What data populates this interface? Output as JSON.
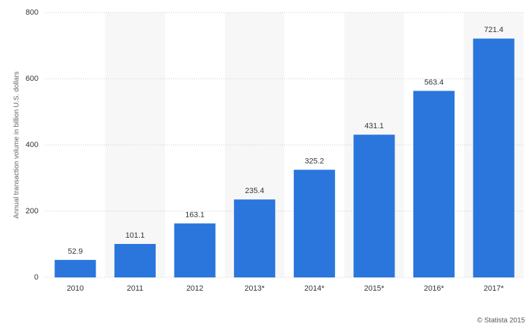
{
  "chart_data": {
    "type": "bar",
    "y_label": "Annual transaction volume in billion U.S. dollars",
    "categories": [
      "2010",
      "2011",
      "2012",
      "2013*",
      "2014*",
      "2015*",
      "2016*",
      "2017*"
    ],
    "values": [
      52.9,
      101.1,
      163.1,
      235.4,
      325.2,
      431.1,
      563.4,
      721.4
    ],
    "color": "#2a76dd",
    "ylim": [
      0,
      800
    ],
    "yticks": [
      0,
      200,
      400,
      600,
      800
    ],
    "grid": true,
    "credit": "© Statista 2015"
  }
}
